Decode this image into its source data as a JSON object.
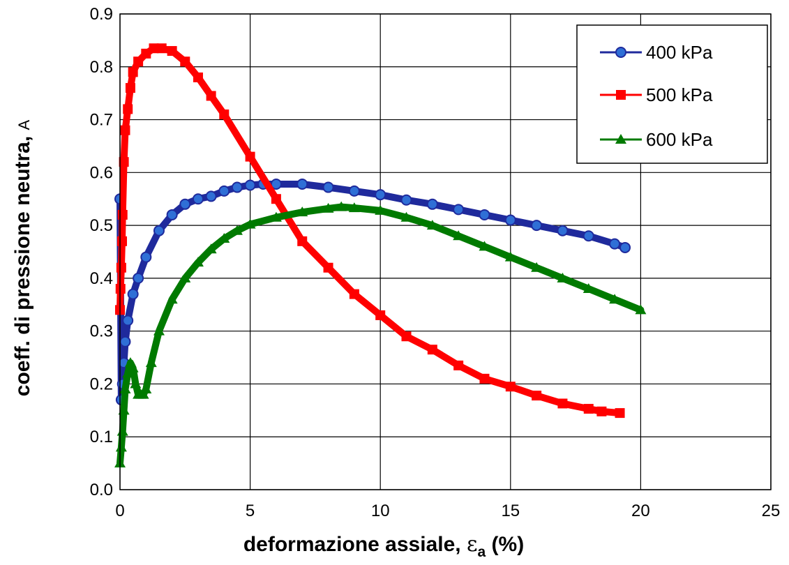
{
  "chart_data": {
    "type": "scatter",
    "xlabel": "deformazione assiale, ",
    "xlabel_symbol": "ε",
    "xlabel_subscript": "a",
    "xlabel_suffix": " (%)",
    "ylabel": "coeff. di pressione neutra, ",
    "ylabel_symbol": "A",
    "xlim": [
      0,
      25
    ],
    "ylim": [
      0.0,
      0.9
    ],
    "x_ticks": [
      "0",
      "5",
      "10",
      "15",
      "20",
      "25"
    ],
    "y_ticks": [
      "0.0",
      "0.1",
      "0.2",
      "0.3",
      "0.4",
      "0.5",
      "0.6",
      "0.7",
      "0.8",
      "0.9"
    ],
    "grid": true,
    "legend_position": "top-right",
    "series": [
      {
        "name": "400 kPa",
        "color": "#1f2a9c",
        "marker": "circle",
        "x": [
          0,
          0.05,
          0.1,
          0.15,
          0.2,
          0.3,
          0.5,
          0.7,
          1.0,
          1.5,
          2.0,
          2.5,
          3.0,
          3.5,
          4.0,
          4.5,
          5.0,
          5.5,
          6.0,
          7.0,
          8.0,
          9.0,
          10.0,
          11.0,
          12.0,
          13.0,
          14.0,
          15.0,
          16.0,
          17.0,
          18.0,
          19.0,
          19.4
        ],
        "y": [
          0.55,
          0.17,
          0.2,
          0.24,
          0.28,
          0.32,
          0.37,
          0.4,
          0.44,
          0.49,
          0.52,
          0.54,
          0.55,
          0.555,
          0.565,
          0.572,
          0.576,
          0.578,
          0.578,
          0.578,
          0.572,
          0.565,
          0.558,
          0.548,
          0.54,
          0.53,
          0.52,
          0.51,
          0.5,
          0.49,
          0.48,
          0.465,
          0.458
        ]
      },
      {
        "name": "500 kPa",
        "color": "#ff0000",
        "marker": "square",
        "x": [
          0,
          0.02,
          0.05,
          0.08,
          0.1,
          0.15,
          0.2,
          0.3,
          0.4,
          0.5,
          0.7,
          1.0,
          1.3,
          1.6,
          2.0,
          2.5,
          3.0,
          3.5,
          4.0,
          5.0,
          6.0,
          7.0,
          8.0,
          9.0,
          10.0,
          11.0,
          12.0,
          13.0,
          14.0,
          15.0,
          16.0,
          17.0,
          18.0,
          18.5,
          19.2
        ],
        "y": [
          0.34,
          0.38,
          0.42,
          0.47,
          0.52,
          0.62,
          0.68,
          0.72,
          0.76,
          0.79,
          0.81,
          0.825,
          0.835,
          0.835,
          0.83,
          0.81,
          0.78,
          0.745,
          0.71,
          0.63,
          0.55,
          0.47,
          0.42,
          0.37,
          0.33,
          0.29,
          0.265,
          0.235,
          0.21,
          0.195,
          0.178,
          0.163,
          0.153,
          0.148,
          0.145
        ]
      },
      {
        "name": "600 kPa",
        "color": "#007a00",
        "marker": "triangle",
        "x": [
          0,
          0.05,
          0.1,
          0.15,
          0.2,
          0.3,
          0.4,
          0.5,
          0.6,
          0.7,
          0.8,
          0.9,
          1.0,
          1.2,
          1.5,
          2.0,
          2.5,
          3.0,
          3.5,
          4.0,
          4.5,
          5.0,
          6.0,
          7.0,
          8.0,
          8.5,
          9.0,
          10.0,
          11.0,
          12.0,
          13.0,
          14.0,
          15.0,
          16.0,
          17.0,
          18.0,
          19.0,
          20.0
        ],
        "y": [
          0.05,
          0.08,
          0.11,
          0.15,
          0.19,
          0.22,
          0.24,
          0.23,
          0.2,
          0.18,
          0.18,
          0.18,
          0.19,
          0.24,
          0.3,
          0.36,
          0.4,
          0.43,
          0.455,
          0.475,
          0.49,
          0.502,
          0.515,
          0.525,
          0.532,
          0.535,
          0.533,
          0.528,
          0.515,
          0.5,
          0.48,
          0.46,
          0.44,
          0.42,
          0.4,
          0.38,
          0.36,
          0.34
        ]
      }
    ]
  }
}
